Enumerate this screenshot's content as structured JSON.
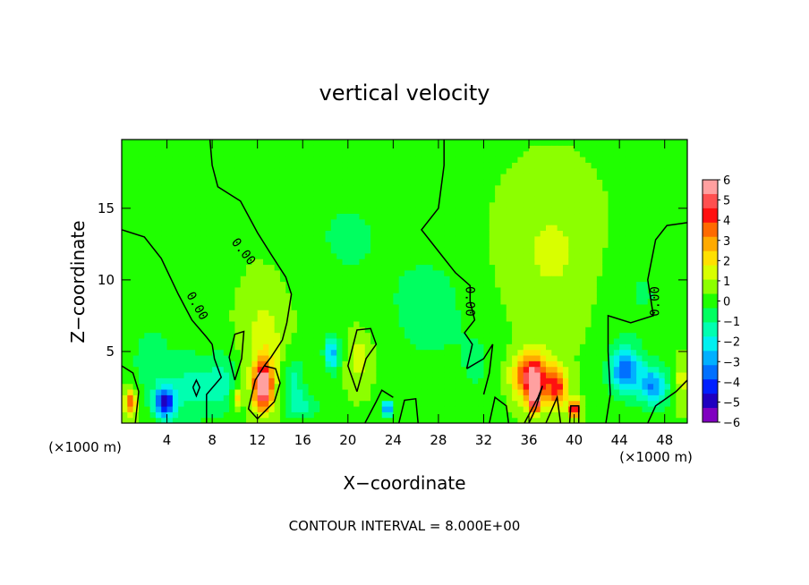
{
  "chart_data": {
    "type": "heatmap",
    "title": "vertical velocity",
    "xlabel": "X−coordinate",
    "ylabel": "Z−coordinate",
    "x_unit_left": "(×1000 m)",
    "x_unit_right": "(×1000 m)",
    "footer": "CONTOUR INTERVAL = 8.000E+00",
    "xlim": [
      0,
      50
    ],
    "ylim": [
      0,
      19.8
    ],
    "x_ticks": [
      4,
      8,
      12,
      16,
      20,
      24,
      28,
      32,
      36,
      40,
      44,
      48
    ],
    "y_ticks": [
      5,
      10,
      15
    ],
    "colorbar": {
      "ticks": [
        "6",
        "5",
        "4",
        "3",
        "2",
        "1",
        "0",
        "−1",
        "−2",
        "−3",
        "−4",
        "−5",
        "−6"
      ],
      "range": [
        -6,
        6
      ],
      "colors": [
        "#ffa0a0",
        "#ff5050",
        "#ff1010",
        "#ff6a00",
        "#ffaa00",
        "#ffe000",
        "#d8ff00",
        "#8cff00",
        "#20ff00",
        "#00ff60",
        "#00ffb0",
        "#00f0f0",
        "#00b0ff",
        "#0070ff",
        "#0020ff",
        "#2000c0",
        "#8000c0"
      ]
    },
    "contour_label": "0.00",
    "field": {
      "background": 0.3,
      "blobs": [
        {
          "x": 0.8,
          "z": 1.5,
          "sx": 0.6,
          "sz": 0.9,
          "a": 3.5
        },
        {
          "x": 3.8,
          "z": 1.4,
          "sx": 0.9,
          "sz": 1.1,
          "a": -4.8
        },
        {
          "x": 6.5,
          "z": 2.5,
          "sx": 2.5,
          "sz": 2.5,
          "a": -1.6
        },
        {
          "x": 2.5,
          "z": 4.5,
          "sx": 2.2,
          "sz": 3.5,
          "a": -0.9
        },
        {
          "x": 9.0,
          "z": 3.0,
          "sx": 1.2,
          "sz": 2.0,
          "a": -1.2
        },
        {
          "x": 10.2,
          "z": 1.8,
          "sx": 0.4,
          "sz": 0.6,
          "a": 2.0
        },
        {
          "x": 12.5,
          "z": 2.6,
          "sx": 0.8,
          "sz": 1.6,
          "a": 6.0
        },
        {
          "x": 12.6,
          "z": 5.5,
          "sx": 1.8,
          "sz": 3.5,
          "a": 1.2
        },
        {
          "x": 15.2,
          "z": 3.0,
          "sx": 1.0,
          "sz": 1.8,
          "a": -1.6
        },
        {
          "x": 18.6,
          "z": 4.9,
          "sx": 0.7,
          "sz": 1.3,
          "a": -3.0
        },
        {
          "x": 16.0,
          "z": 1.2,
          "sx": 1.5,
          "sz": 1.0,
          "a": -1.4
        },
        {
          "x": 21.0,
          "z": 4.5,
          "sx": 1.0,
          "sz": 1.8,
          "a": 1.2
        },
        {
          "x": 23.5,
          "z": 1.0,
          "sx": 0.5,
          "sz": 0.6,
          "a": -4.0
        },
        {
          "x": 20.0,
          "z": 13.0,
          "sx": 4.0,
          "sz": 4.0,
          "a": -0.8
        },
        {
          "x": 27.0,
          "z": 8.0,
          "sx": 3.5,
          "sz": 4.0,
          "a": -1.1
        },
        {
          "x": 31.5,
          "z": 4.0,
          "sx": 2.0,
          "sz": 3.0,
          "a": -0.7
        },
        {
          "x": 36.3,
          "z": 3.3,
          "sx": 1.6,
          "sz": 1.6,
          "a": 5.0
        },
        {
          "x": 36.5,
          "z": 2.0,
          "sx": 0.5,
          "sz": 1.2,
          "a": 6.0
        },
        {
          "x": 38.5,
          "z": 2.5,
          "sx": 0.9,
          "sz": 1.4,
          "a": 3.5
        },
        {
          "x": 40.0,
          "z": 1.0,
          "sx": 0.5,
          "sz": 0.6,
          "a": 5.0
        },
        {
          "x": 38.0,
          "z": 12.0,
          "sx": 3.5,
          "sz": 4.5,
          "a": 0.9
        },
        {
          "x": 44.5,
          "z": 3.7,
          "sx": 1.4,
          "sz": 1.7,
          "a": -3.8
        },
        {
          "x": 47.0,
          "z": 2.6,
          "sx": 1.3,
          "sz": 1.4,
          "a": -3.5
        },
        {
          "x": 46.0,
          "z": 9.0,
          "sx": 3.0,
          "sz": 3.5,
          "a": -0.7
        },
        {
          "x": 49.5,
          "z": 3.0,
          "sx": 0.6,
          "sz": 1.5,
          "a": 1.2
        }
      ]
    },
    "contour_lines": [
      [
        [
          0,
          13.5
        ],
        [
          2,
          13.0
        ],
        [
          3.5,
          11.5
        ],
        [
          5,
          9.0
        ],
        [
          6.2,
          7.2
        ],
        [
          7.5,
          6.0
        ],
        [
          8,
          5.5
        ]
      ],
      [
        [
          7.8,
          19.8
        ],
        [
          8,
          18
        ],
        [
          8.5,
          16.5
        ],
        [
          10.5,
          15.5
        ],
        [
          12,
          13.3
        ],
        [
          13.2,
          11.8
        ],
        [
          14.5,
          10.2
        ],
        [
          15,
          9.0
        ],
        [
          14.6,
          7.0
        ],
        [
          14.2,
          5.8
        ],
        [
          13.2,
          4.6
        ],
        [
          12.6,
          4.0
        ]
      ],
      [
        [
          28.5,
          19.8
        ],
        [
          28.5,
          18.0
        ],
        [
          28.0,
          15.0
        ],
        [
          26.5,
          13.5
        ],
        [
          28.0,
          12.0
        ],
        [
          29.5,
          10.5
        ],
        [
          30.8,
          9.6
        ],
        [
          30.8,
          8.5
        ],
        [
          31.2,
          7.2
        ],
        [
          30.3,
          6.3
        ],
        [
          31.0,
          5.5
        ],
        [
          30.5,
          3.8
        ]
      ],
      [
        [
          46.5,
          0
        ],
        [
          47.2,
          1.2
        ],
        [
          49.0,
          2.2
        ],
        [
          50,
          3.0
        ]
      ],
      [
        [
          50,
          14.0
        ],
        [
          48.2,
          13.8
        ],
        [
          47.2,
          12.8
        ],
        [
          46.5,
          10.0
        ],
        [
          47.0,
          7.5
        ],
        [
          45.0,
          7.0
        ],
        [
          43.0,
          7.5
        ],
        [
          43.0,
          5.0
        ],
        [
          43.2,
          2.0
        ],
        [
          42.8,
          0
        ]
      ],
      [
        [
          0,
          4.0
        ],
        [
          1.0,
          3.5
        ],
        [
          1.5,
          2.2
        ],
        [
          1.2,
          0
        ]
      ],
      [
        [
          8,
          5.5
        ],
        [
          8.2,
          4.5
        ],
        [
          8.8,
          3.2
        ],
        [
          7.5,
          2.0
        ],
        [
          7.5,
          0
        ]
      ],
      [
        [
          10.0,
          3.0
        ],
        [
          9.5,
          4.6
        ],
        [
          10.0,
          6.2
        ],
        [
          10.8,
          6.4
        ],
        [
          10.6,
          4.5
        ],
        [
          10.0,
          3.0
        ]
      ],
      [
        [
          6.3,
          2.5
        ],
        [
          6.6,
          3.0
        ],
        [
          6.9,
          2.5
        ],
        [
          6.6,
          1.9
        ],
        [
          6.3,
          2.5
        ]
      ],
      [
        [
          12.6,
          4.0
        ],
        [
          11.8,
          3.0
        ],
        [
          11.2,
          1.0
        ],
        [
          12.0,
          0.3
        ],
        [
          13.5,
          1.5
        ],
        [
          14.0,
          2.8
        ],
        [
          13.6,
          3.8
        ],
        [
          12.6,
          4.0
        ]
      ],
      [
        [
          20.8,
          2.2
        ],
        [
          20.0,
          4.0
        ],
        [
          20.8,
          6.5
        ],
        [
          22.0,
          6.6
        ],
        [
          22.5,
          5.5
        ],
        [
          21.6,
          4.5
        ],
        [
          20.8,
          2.2
        ]
      ],
      [
        [
          21.5,
          0
        ],
        [
          22.5,
          1.5
        ],
        [
          23.0,
          2.3
        ],
        [
          24.0,
          1.8
        ]
      ],
      [
        [
          24.5,
          0
        ],
        [
          25.0,
          1.6
        ],
        [
          26.0,
          1.7
        ],
        [
          26.2,
          0
        ]
      ],
      [
        [
          30.5,
          3.8
        ],
        [
          32.0,
          4.5
        ],
        [
          32.8,
          5.5
        ],
        [
          32.5,
          3.5
        ],
        [
          32.0,
          2.0
        ]
      ],
      [
        [
          32.5,
          0
        ],
        [
          33.0,
          1.8
        ],
        [
          34.0,
          1.2
        ],
        [
          34.2,
          0
        ]
      ],
      [
        [
          35.6,
          0
        ],
        [
          36.8,
          1.8
        ],
        [
          37.2,
          2.6
        ],
        [
          36.6,
          1.0
        ],
        [
          36.0,
          0
        ]
      ],
      [
        [
          37.5,
          0
        ],
        [
          38.5,
          1.8
        ],
        [
          38.8,
          0
        ]
      ],
      [
        [
          39.6,
          0
        ],
        [
          39.7,
          1.2
        ],
        [
          40.4,
          1.2
        ],
        [
          40.4,
          0
        ]
      ]
    ],
    "contour_label_positions": [
      {
        "x": 10.8,
        "z": 12.0,
        "rot": 52
      },
      {
        "x": 6.7,
        "z": 8.2,
        "rot": 60
      },
      {
        "x": 30.8,
        "z": 8.5,
        "rot": 90
      },
      {
        "x": 47.1,
        "z": 8.5,
        "rot": -90
      }
    ]
  }
}
